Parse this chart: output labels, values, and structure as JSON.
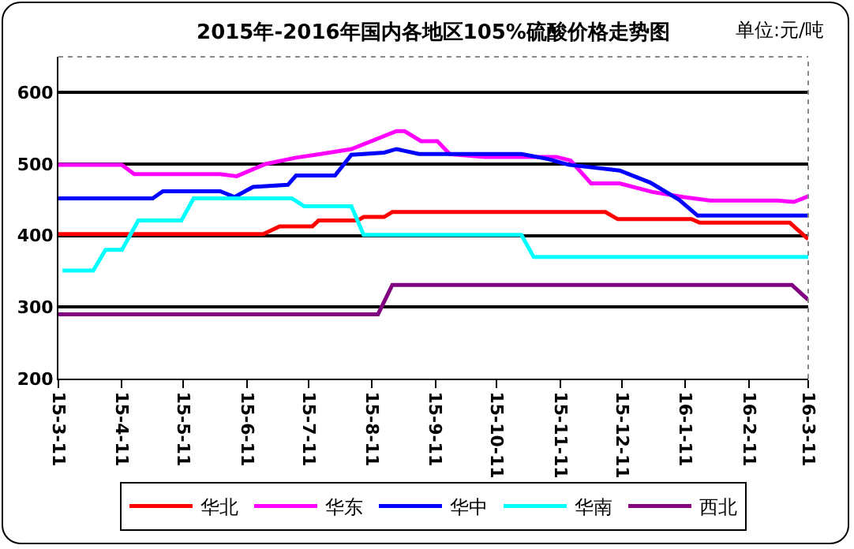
{
  "chart_data": {
    "type": "line",
    "title": "2015年-2016年国内各地区105%硫酸价格走势图",
    "annotations": [
      "单位:元/吨"
    ],
    "ylim": [
      200,
      650
    ],
    "yticks": [
      200,
      300,
      400,
      500,
      600
    ],
    "xlim": [
      "2015-03-11",
      "2016-03-11"
    ],
    "xticks": [
      {
        "value": "2015-03-11",
        "label": "15-3-11"
      },
      {
        "value": "2015-04-11",
        "label": "15-4-11"
      },
      {
        "value": "2015-05-11",
        "label": "15-5-11"
      },
      {
        "value": "2015-06-11",
        "label": "15-6-11"
      },
      {
        "value": "2015-07-11",
        "label": "15-7-11"
      },
      {
        "value": "2015-08-11",
        "label": "15-8-11"
      },
      {
        "value": "2015-09-11",
        "label": "15-9-11"
      },
      {
        "value": "2015-10-11",
        "label": "15-10-11"
      },
      {
        "value": "2015-11-11",
        "label": "15-11-11"
      },
      {
        "value": "2015-12-11",
        "label": "15-12-11"
      },
      {
        "value": "2016-01-11",
        "label": "16-1-11"
      },
      {
        "value": "2016-02-11",
        "label": "16-2-11"
      },
      {
        "value": "2016-03-11",
        "label": "16-3-11"
      }
    ],
    "grid": "y",
    "legend": "bottom",
    "marker": "none",
    "line_style": "solid",
    "series": [
      {
        "name": "华北",
        "color": "#ff0000",
        "x": [
          "2015-03-11",
          "2015-06-19",
          "2015-06-27",
          "2015-07-13",
          "2015-07-16",
          "2015-08-04",
          "2015-08-07",
          "2015-08-17",
          "2015-08-21",
          "2015-12-03",
          "2015-12-09",
          "2016-01-14",
          "2016-01-18",
          "2016-03-02",
          "2016-03-11"
        ],
        "values": [
          402,
          402,
          413,
          413,
          421,
          421,
          426,
          426,
          433,
          433,
          423,
          423,
          418,
          418,
          395
        ]
      },
      {
        "name": "华东",
        "color": "#ff00ff",
        "x": [
          "2015-03-11",
          "2015-04-11",
          "2015-04-17",
          "2015-05-29",
          "2015-06-06",
          "2015-06-20",
          "2015-07-05",
          "2015-07-17",
          "2015-08-01",
          "2015-08-23",
          "2015-08-27",
          "2015-09-04",
          "2015-09-12",
          "2015-09-18",
          "2015-10-05",
          "2015-11-09",
          "2015-11-16",
          "2015-11-26",
          "2015-12-10",
          "2015-12-26",
          "2016-01-10",
          "2016-01-23",
          "2016-02-25",
          "2016-03-04",
          "2016-03-11"
        ],
        "values": [
          499,
          499,
          486,
          486,
          483,
          500,
          509,
          514,
          521,
          546,
          546,
          532,
          532,
          514,
          510,
          510,
          505,
          473,
          473,
          461,
          454,
          449,
          449,
          447,
          455
        ]
      },
      {
        "name": "华中",
        "color": "#0000ff",
        "x": [
          "2015-03-11",
          "2015-04-26",
          "2015-05-01",
          "2015-05-29",
          "2015-06-05",
          "2015-06-14",
          "2015-07-01",
          "2015-07-05",
          "2015-07-24",
          "2015-08-01",
          "2015-08-17",
          "2015-08-23",
          "2015-09-03",
          "2015-10-23",
          "2015-11-05",
          "2015-11-15",
          "2015-12-10",
          "2015-12-25",
          "2016-01-08",
          "2016-01-17",
          "2016-03-11"
        ],
        "values": [
          452,
          452,
          462,
          462,
          454,
          468,
          471,
          484,
          484,
          513,
          516,
          521,
          514,
          514,
          507,
          499,
          491,
          474,
          450,
          428,
          428
        ]
      },
      {
        "name": "华南",
        "color": "#00ffff",
        "x": [
          "2015-03-13",
          "2015-03-28",
          "2015-04-03",
          "2015-04-11",
          "2015-04-19",
          "2015-05-10",
          "2015-05-16",
          "2015-07-03",
          "2015-07-09",
          "2015-08-01",
          "2015-08-07",
          "2015-10-23",
          "2015-10-29",
          "2016-03-11"
        ],
        "values": [
          351,
          351,
          380,
          380,
          421,
          421,
          452,
          452,
          441,
          441,
          401,
          401,
          370,
          370
        ]
      },
      {
        "name": "西北",
        "color": "#800080",
        "x": [
          "2015-03-11",
          "2015-08-14",
          "2015-08-21",
          "2016-03-03",
          "2016-03-11"
        ],
        "values": [
          290,
          290,
          331,
          331,
          310
        ]
      }
    ]
  }
}
